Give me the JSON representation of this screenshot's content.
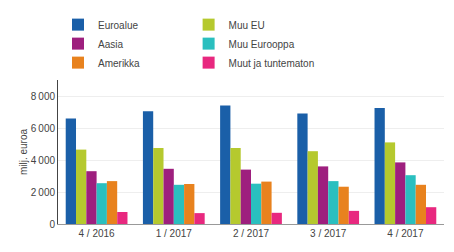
{
  "chart_data": {
    "type": "bar",
    "categories": [
      "4 / 2016",
      "1 / 2017",
      "2 / 2017",
      "3 / 2017",
      "4 / 2017"
    ],
    "series": [
      {
        "name": "Euroalue",
        "color": "#1a5fa8",
        "values": [
          6600,
          7050,
          7400,
          6900,
          7250
        ]
      },
      {
        "name": "Muu EU",
        "color": "#b5c92e",
        "values": [
          4650,
          4750,
          4750,
          4550,
          5100
        ]
      },
      {
        "name": "Aasia",
        "color": "#9e1f7e",
        "values": [
          3300,
          3450,
          3400,
          3600,
          3850
        ]
      },
      {
        "name": "Muu Eurooppa",
        "color": "#2abfbf",
        "values": [
          2550,
          2450,
          2520,
          2680,
          3050
        ]
      },
      {
        "name": "Amerikka",
        "color": "#e8821e",
        "values": [
          2680,
          2500,
          2650,
          2330,
          2450
        ]
      },
      {
        "name": "Muut ja tuntematon",
        "color": "#e8287f",
        "values": [
          750,
          680,
          700,
          820,
          1050
        ]
      }
    ],
    "ylabel": "milj. euroa",
    "ylim": [
      0,
      9000
    ],
    "yticks": [
      0,
      {
        "value": 2000,
        "label": "2 000"
      },
      {
        "value": 4000,
        "label": "4 000"
      },
      {
        "value": 6000,
        "label": "6 000"
      },
      {
        "value": 8000,
        "label": "8 000"
      }
    ],
    "grid": true,
    "legend": "top"
  }
}
